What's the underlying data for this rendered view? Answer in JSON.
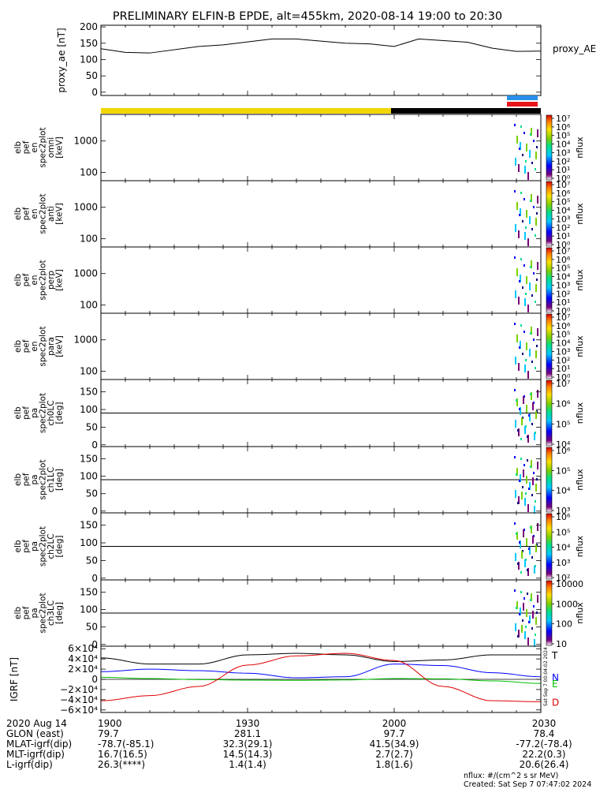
{
  "title": "PRELIMINARY ELFIN-B EPDE, alt=455km, 2020-08-14 19:00 to 20:30",
  "colors": {
    "yellow_bar": "#f2d600",
    "black_bar": "#000000",
    "blue_bar": "#2a8fe8",
    "red_bar": "#e8141b",
    "grf_t": "#000000",
    "grf_n": "#0000ff",
    "grf_e": "#00c000",
    "grf_d": "#e00000"
  },
  "colorbar_stops": [
    "#ffffff",
    "#7a007a",
    "#0000ff",
    "#00c8ff",
    "#00e08a",
    "#7cd000",
    "#ffe000",
    "#ff8000",
    "#d80000"
  ],
  "chart_data": [
    {
      "type": "line",
      "panel": "proxy_ae",
      "ylabel": "proxy_ae [nT]",
      "legend": "proxy_AE",
      "ylim": [
        -10,
        205
      ],
      "yticks": [
        "200",
        "150",
        "100",
        "50",
        "0"
      ],
      "ytick_values": [
        200,
        150,
        100,
        50,
        0
      ],
      "x": [
        0,
        5,
        10,
        20,
        25,
        35,
        40,
        50,
        55,
        60,
        65,
        75,
        80,
        85,
        90
      ],
      "values": [
        133,
        122,
        120,
        140,
        145,
        163,
        163,
        150,
        148,
        140,
        163,
        153,
        135,
        125,
        126
      ]
    },
    {
      "type": "heatmap",
      "panel": "spec2plot_omni",
      "ylabel": [
        "elb",
        "pef",
        "en",
        "spec2plot",
        "omni",
        "[keV]"
      ],
      "yscale": "log",
      "ylim": [
        55,
        7000
      ],
      "yticks": [
        "1000",
        "100"
      ],
      "ytick_values": [
        1000,
        100
      ],
      "colorbar_label": "nflux",
      "colorbar_ticks": [
        "10⁷",
        "10⁶",
        "10⁵",
        "10⁴",
        "10³",
        "10²",
        "10¹",
        "10⁰"
      ]
    },
    {
      "type": "heatmap",
      "panel": "spec2plot_anti",
      "ylabel": [
        "elb",
        "pef",
        "en",
        "spec2plot",
        "anti",
        "[keV]"
      ],
      "yscale": "log",
      "ylim": [
        55,
        7000
      ],
      "yticks": [
        "1000",
        "100"
      ],
      "ytick_values": [
        1000,
        100
      ],
      "colorbar_label": "nflux",
      "colorbar_ticks": [
        "10⁷",
        "10⁶",
        "10⁵",
        "10⁴",
        "10³",
        "10²",
        "10¹",
        "10⁰"
      ]
    },
    {
      "type": "heatmap",
      "panel": "spec2plot_perp",
      "ylabel": [
        "elb",
        "pef",
        "en",
        "spec2plot",
        "perp",
        "[keV]"
      ],
      "yscale": "log",
      "ylim": [
        55,
        7000
      ],
      "yticks": [
        "1000",
        "100"
      ],
      "ytick_values": [
        1000,
        100
      ],
      "colorbar_label": "nflux",
      "colorbar_ticks": [
        "10⁷",
        "10⁶",
        "10⁵",
        "10⁴",
        "10³",
        "10²",
        "10¹",
        "10⁰"
      ]
    },
    {
      "type": "heatmap",
      "panel": "spec2plot_para",
      "ylabel": [
        "elb",
        "pef",
        "en",
        "spec2plot",
        "para",
        "[keV]"
      ],
      "yscale": "log",
      "ylim": [
        55,
        7000
      ],
      "yticks": [
        "1000",
        "100"
      ],
      "ytick_values": [
        1000,
        100
      ],
      "colorbar_label": "nflux",
      "colorbar_ticks": [
        "10⁷",
        "10⁶",
        "10⁵",
        "10⁴",
        "10³",
        "10²",
        "10¹",
        "10⁰"
      ]
    },
    {
      "type": "heatmap",
      "panel": "spec2plot_ch0LC",
      "ylabel": [
        "elb",
        "pef",
        "pa",
        "spec2plot",
        "ch0LC",
        "[deg]"
      ],
      "ylim": [
        -5,
        185
      ],
      "yticks": [
        "150",
        "100",
        "50",
        "0"
      ],
      "ytick_values": [
        150,
        100,
        50,
        0
      ],
      "colorbar_label": "nflux",
      "colorbar_ticks": [
        "10⁷",
        "10⁶",
        "10⁵",
        "10⁴"
      ]
    },
    {
      "type": "heatmap",
      "panel": "spec2plot_ch1LC",
      "ylabel": [
        "elb",
        "pef",
        "pa",
        "spec2plot",
        "ch1LC",
        "[deg]"
      ],
      "ylim": [
        -5,
        185
      ],
      "yticks": [
        "150",
        "100",
        "50",
        "0"
      ],
      "ytick_values": [
        150,
        100,
        50,
        0
      ],
      "colorbar_label": "nflux",
      "colorbar_ticks": [
        "10⁶",
        "10⁵",
        "10⁴",
        "10³"
      ]
    },
    {
      "type": "heatmap",
      "panel": "spec2plot_ch2LC",
      "ylabel": [
        "elb",
        "pef",
        "pa",
        "spec2plot",
        "ch2LC",
        "[deg]"
      ],
      "ylim": [
        -5,
        185
      ],
      "yticks": [
        "150",
        "100",
        "50",
        "0"
      ],
      "ytick_values": [
        150,
        100,
        50,
        0
      ],
      "colorbar_label": "nflux",
      "colorbar_ticks": [
        "10⁶",
        "10⁵",
        "10⁴",
        "10³",
        "10²"
      ]
    },
    {
      "type": "heatmap",
      "panel": "spec2plot_ch3LC",
      "ylabel": [
        "elb",
        "pef",
        "pa",
        "spec2plot",
        "ch3LC",
        "[deg]"
      ],
      "ylim": [
        -5,
        185
      ],
      "yticks": [
        "150",
        "100",
        "50",
        "0"
      ],
      "ytick_values": [
        150,
        100,
        50,
        0
      ],
      "colorbar_label": "nflux",
      "colorbar_ticks": [
        "10000",
        "1000",
        "100",
        "10"
      ]
    },
    {
      "type": "line",
      "panel": "igrf",
      "ylabel": "IGRF [nT]",
      "ylim": [
        -65000,
        65000
      ],
      "yticks": [
        "6×10⁴",
        "4×10⁴",
        "2×10⁴",
        "0",
        "−2×10⁴",
        "−4×10⁴",
        "−6×10⁴"
      ],
      "ytick_values": [
        60000,
        40000,
        20000,
        0,
        -20000,
        -40000,
        -60000
      ],
      "x": [
        0,
        10,
        20,
        30,
        40,
        50,
        60,
        70,
        80,
        90
      ],
      "series": [
        {
          "name": "T",
          "values": [
            42000,
            30000,
            30000,
            48000,
            51000,
            48000,
            35000,
            38000,
            48000,
            48000
          ]
        },
        {
          "name": "N",
          "values": [
            15000,
            20000,
            17000,
            12000,
            3000,
            5000,
            30000,
            27000,
            13000,
            5000
          ]
        },
        {
          "name": "E",
          "values": [
            4000,
            1500,
            -500,
            -1500,
            -2000,
            -1200,
            1500,
            1000,
            -3000,
            -8000
          ]
        },
        {
          "name": "D",
          "values": [
            -42000,
            -32000,
            -14000,
            28000,
            46000,
            51000,
            37000,
            -14000,
            -42000,
            -44000
          ]
        }
      ]
    }
  ],
  "time_axis": {
    "ticks": [
      "1900",
      "1930",
      "2000",
      "2030"
    ],
    "tick_x": [
      0,
      30,
      60,
      90
    ],
    "rows": [
      {
        "label": "2020 Aug 14",
        "values": [
          "1900",
          "1930",
          "2000",
          "2030"
        ]
      },
      {
        "label": "GLON (east)",
        "values": [
          "79.7",
          "281.1",
          "97.7",
          "78.4"
        ]
      },
      {
        "label": "MLAT-igrf(dip)",
        "values": "-78.7(-85.1)|32.3(29.1)|41.5(34.9)|-77.2(-78.4)"
      },
      {
        "label": "MLT-igrf(dip)",
        "values": "16.7(16.5)|14.5(14.3)|2.7(2.7)|22.2(0.3)"
      },
      {
        "label": "L-igrf(dip)",
        "values": "26.3(****)|1.4(1.4)|1.8(1.6)|20.6(26.4)"
      }
    ]
  },
  "footer": {
    "units": "nflux: #/(cm^2 s sr MeV)",
    "created": "Created: Sat Sep  7 07:47:02 2024",
    "vertical_stamp": "Sat Sep  7 00:04:02 2024"
  }
}
